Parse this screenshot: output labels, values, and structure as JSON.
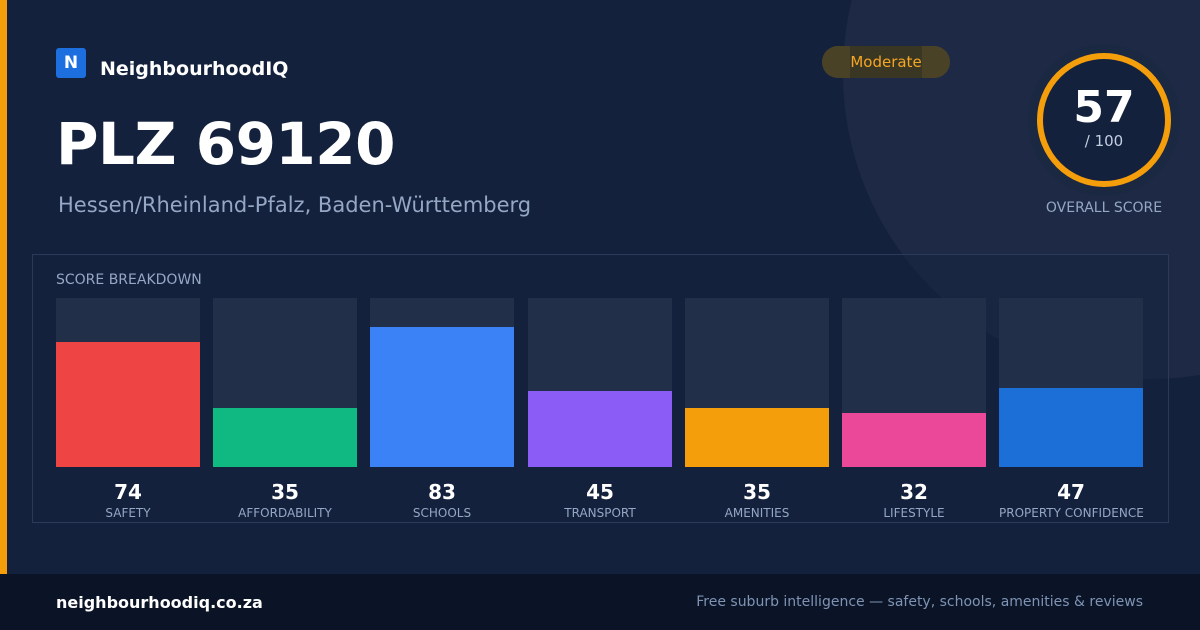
{
  "brand": {
    "logo_letter": "N",
    "name": "NeighbourhoodIQ",
    "color": "#1d6fe0"
  },
  "badge": {
    "label": "Moderate",
    "color": "#f5a623"
  },
  "location": {
    "title": "PLZ 69120",
    "region": "Hessen/Rheinland-Pfalz, Baden-Württemberg"
  },
  "overall_score": {
    "value": "57",
    "max_label": "/ 100",
    "fraction": 0.57,
    "label": "OVERALL SCORE",
    "ring_color": "#f59e0b"
  },
  "breakdown": {
    "title": "SCORE BREAKDOWN",
    "items": [
      {
        "label": "SAFETY",
        "value": 74,
        "color": "#ef4444"
      },
      {
        "label": "AFFORDABILITY",
        "value": 35,
        "color": "#10b981"
      },
      {
        "label": "SCHOOLS",
        "value": 83,
        "color": "#3b82f6"
      },
      {
        "label": "TRANSPORT",
        "value": 45,
        "color": "#8b5cf6"
      },
      {
        "label": "AMENITIES",
        "value": 35,
        "color": "#f59e0b"
      },
      {
        "label": "LIFESTYLE",
        "value": 32,
        "color": "#ec4899"
      },
      {
        "label": "PROPERTY CONFIDENCE",
        "value": 47,
        "color": "#1d6fd8"
      }
    ]
  },
  "footer": {
    "url": "neighbourhoodiq.co.za",
    "tagline": "Free suburb intelligence — safety, schools, amenities & reviews"
  },
  "accent_color": "#f59e0b"
}
